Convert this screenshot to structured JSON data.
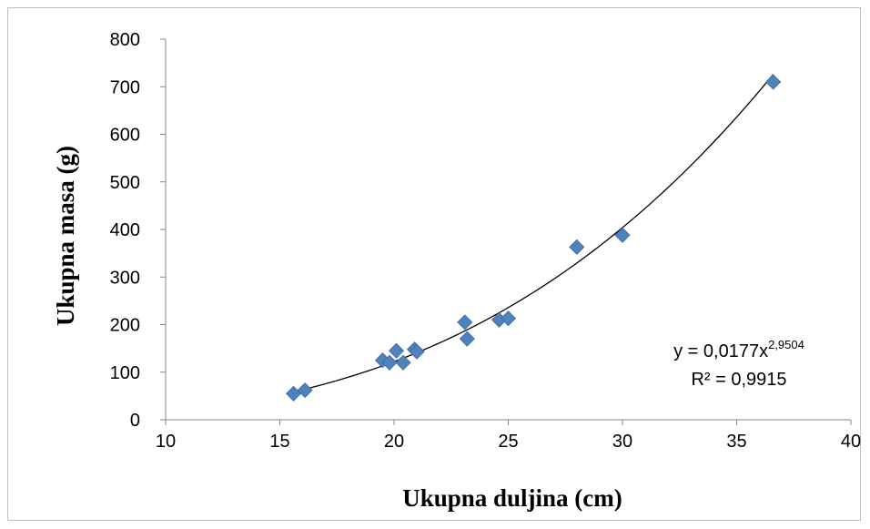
{
  "chart_data": {
    "type": "scatter",
    "xlabel": "Ukupna duljina (cm)",
    "ylabel": "Ukupna masa (g)",
    "xlim": [
      10,
      40
    ],
    "ylim": [
      0,
      800
    ],
    "xticks": [
      "10",
      "15",
      "20",
      "25",
      "30",
      "35",
      "40"
    ],
    "yticks": [
      "0",
      "100",
      "200",
      "300",
      "400",
      "500",
      "600",
      "700",
      "800"
    ],
    "grid": false,
    "legend": "none",
    "marker": "diamond",
    "marker_color": "#4f81bd",
    "series": [
      {
        "points": [
          {
            "x": 15.6,
            "y": 55
          },
          {
            "x": 16.1,
            "y": 62
          },
          {
            "x": 19.5,
            "y": 125
          },
          {
            "x": 19.8,
            "y": 120
          },
          {
            "x": 20.1,
            "y": 145
          },
          {
            "x": 20.4,
            "y": 120
          },
          {
            "x": 20.9,
            "y": 148
          },
          {
            "x": 21.0,
            "y": 143
          },
          {
            "x": 23.1,
            "y": 205
          },
          {
            "x": 23.2,
            "y": 170
          },
          {
            "x": 24.6,
            "y": 210
          },
          {
            "x": 25.0,
            "y": 213
          },
          {
            "x": 28.0,
            "y": 363
          },
          {
            "x": 30.0,
            "y": 388
          },
          {
            "x": 36.6,
            "y": 710
          }
        ]
      }
    ],
    "trendline": {
      "type": "power",
      "coefficient": 0.0177,
      "exponent": 2.9504,
      "x_range": [
        15.6,
        36.6
      ],
      "color": "#000000",
      "equation_prefix": "y = 0,0177x",
      "equation_exponent": "2,9504",
      "r_squared_label": "R² = 0,9915"
    }
  }
}
